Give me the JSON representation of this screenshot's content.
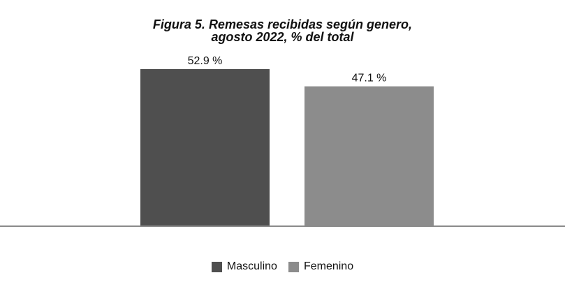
{
  "chart_data": {
    "type": "bar",
    "title": [
      "Figura 5. Remesas recibidas según genero,",
      "agosto 2022, % del total"
    ],
    "series": [
      {
        "name": "Masculino",
        "value": 52.9,
        "label": "52.9 %",
        "color": "#4f4f4f"
      },
      {
        "name": "Femenino",
        "value": 47.1,
        "label": "47.1 %",
        "color": "#8c8c8c"
      }
    ],
    "ylim": [
      0,
      55
    ],
    "grid": false,
    "legend_position": "bottom"
  }
}
